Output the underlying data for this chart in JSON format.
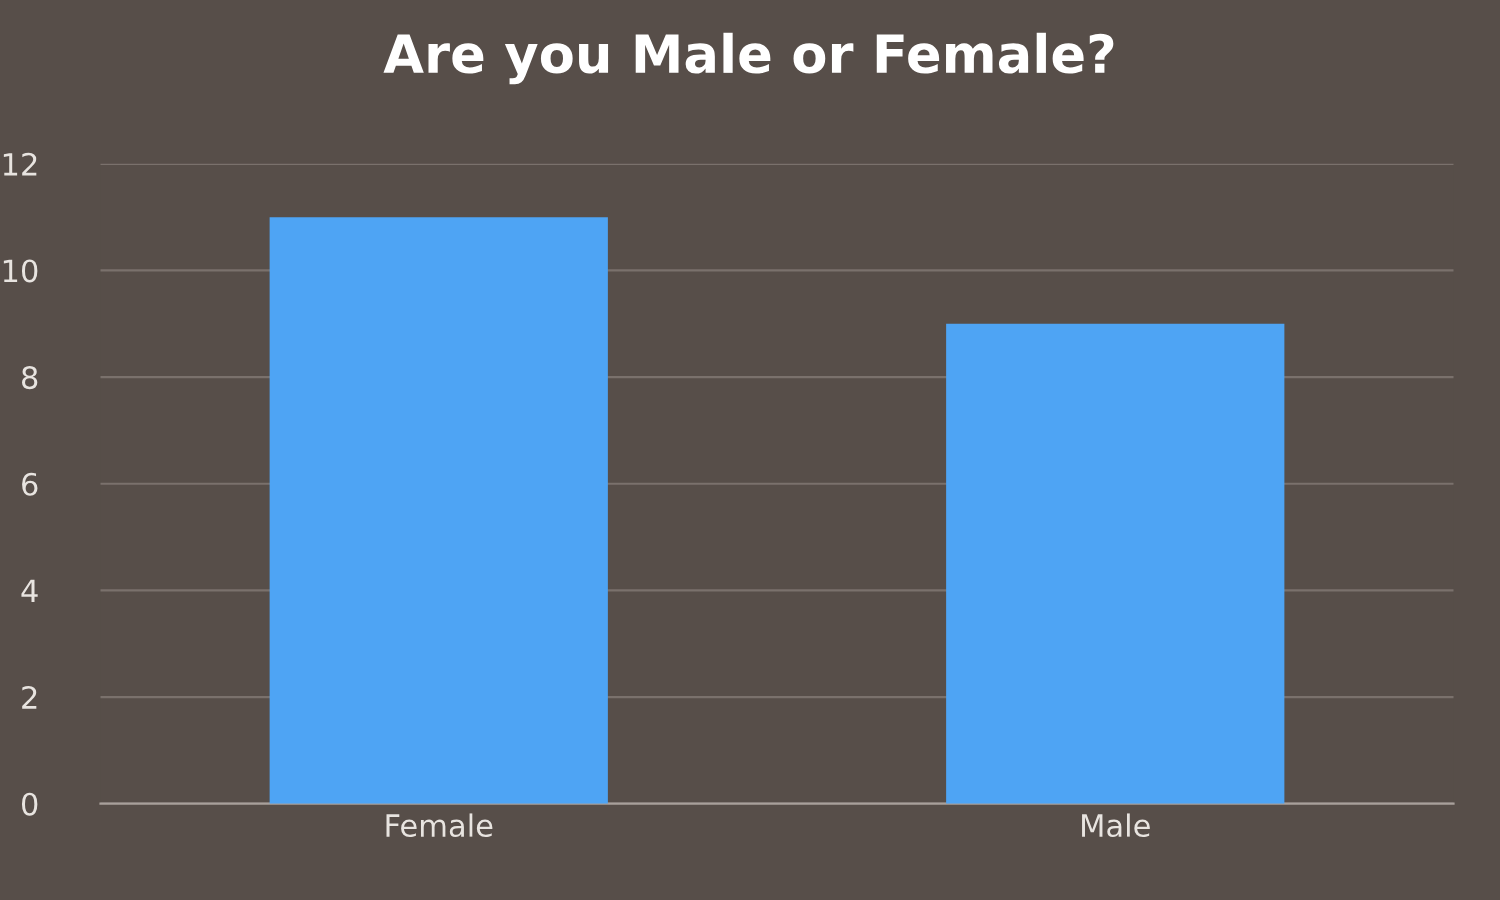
{
  "chart_data": {
    "type": "bar",
    "title": "Are you Male or Female?",
    "categories": [
      "Female",
      "Male"
    ],
    "values": [
      11,
      9
    ],
    "color": "#4ea4f4",
    "ylim": [
      0,
      12
    ],
    "yticks": [
      0,
      2,
      4,
      6,
      8,
      10,
      12
    ],
    "grid": "y"
  }
}
